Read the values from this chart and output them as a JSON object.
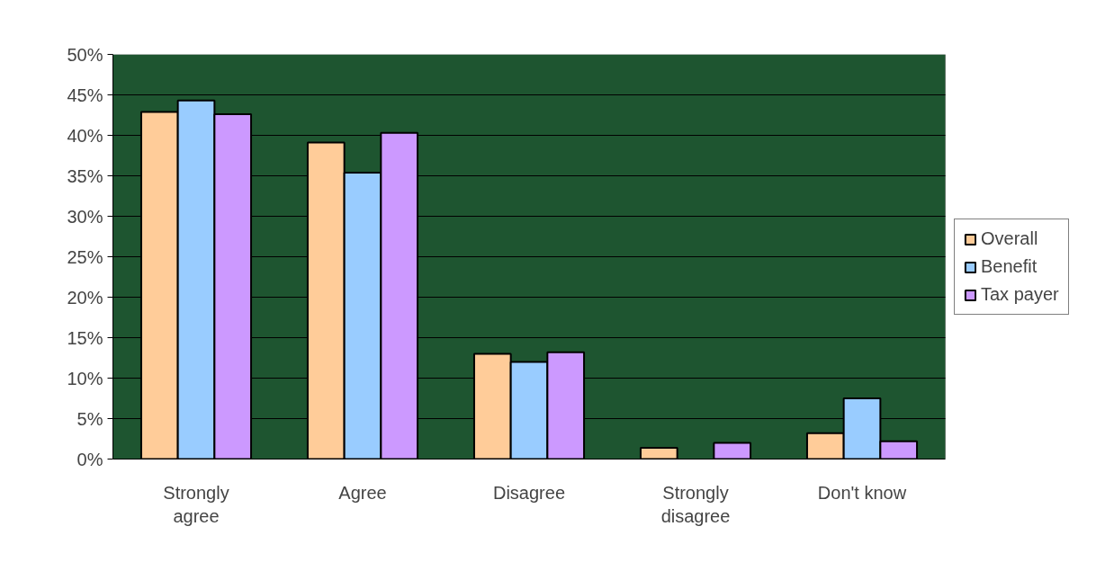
{
  "chart_data": {
    "type": "bar",
    "categories": [
      "Strongly agree",
      "Agree",
      "Disagree",
      "Strongly disagree",
      "Don't know"
    ],
    "series": [
      {
        "name": "Overall",
        "color": "#ffcc99",
        "values": [
          42.9,
          39.1,
          13.0,
          1.4,
          3.2
        ]
      },
      {
        "name": "Benefit",
        "color": "#99ccff",
        "values": [
          44.3,
          35.4,
          12.0,
          0,
          7.5
        ]
      },
      {
        "name": "Tax payer",
        "color": "#cc99ff",
        "values": [
          42.6,
          40.3,
          13.2,
          2.0,
          2.2
        ]
      }
    ],
    "ylim": [
      0,
      50
    ],
    "yticks": [
      {
        "value": 0,
        "label": "0%"
      },
      {
        "value": 5,
        "label": "5%"
      },
      {
        "value": 10,
        "label": "10%"
      },
      {
        "value": 15,
        "label": "15%"
      },
      {
        "value": 20,
        "label": "20%"
      },
      {
        "value": 25,
        "label": "25%"
      },
      {
        "value": 30,
        "label": "30%"
      },
      {
        "value": 35,
        "label": "35%"
      },
      {
        "value": 40,
        "label": "40%"
      },
      {
        "value": 45,
        "label": "45%"
      },
      {
        "value": 50,
        "label": "50%"
      }
    ],
    "grid": "y",
    "legend": "right"
  }
}
